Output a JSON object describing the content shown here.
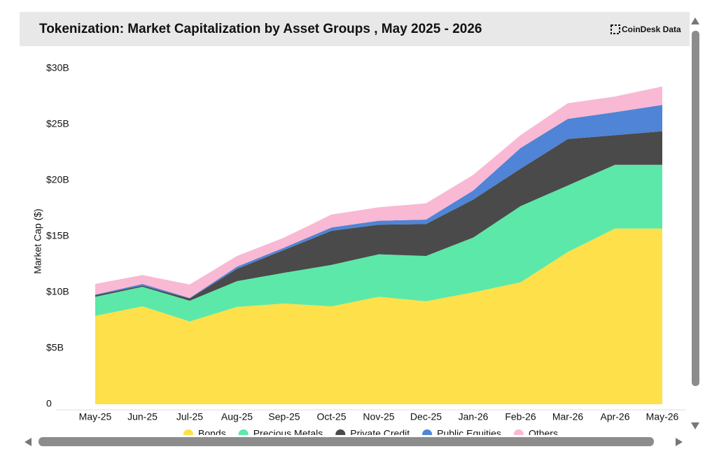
{
  "chart_data": {
    "type": "stacked-area",
    "title": "Tokenization: Market Capitalization by Asset Groups , May 2025 - 2026",
    "source": "CoinDesk Data",
    "y_label": "Market Cap ($)",
    "categories": [
      "May-25",
      "Jun-25",
      "Jul-25",
      "Aug-25",
      "Sep-25",
      "Oct-25",
      "Nov-25",
      "Dec-25",
      "Jan-26",
      "Feb-26",
      "Mar-26",
      "Apr-26",
      "May-26"
    ],
    "ylim": [
      0,
      30
    ],
    "yticks": [
      0,
      {
        "value": 5,
        "label": "$5B"
      },
      {
        "value": 10,
        "label": "$10B"
      },
      {
        "value": 15,
        "label": "$15B"
      },
      {
        "value": 20,
        "label": "$20B"
      },
      {
        "value": 25,
        "label": "$25B"
      },
      {
        "value": 30,
        "label": "$30B"
      }
    ],
    "grid": false,
    "legend": "bottom",
    "series": [
      {
        "name": "Bonds",
        "color": "#fde04a",
        "values": [
          7.9,
          8.75,
          7.4,
          8.7,
          9.0,
          8.75,
          9.6,
          9.2,
          10.0,
          10.9,
          13.6,
          15.7,
          15.7
        ]
      },
      {
        "name": "Precious Metals",
        "color": "#5ce8a8",
        "values": [
          1.7,
          1.75,
          1.85,
          2.3,
          2.75,
          3.7,
          3.8,
          4.05,
          4.9,
          6.8,
          5.95,
          5.7,
          5.7
        ]
      },
      {
        "name": "Private Credit",
        "color": "#4a4a4a",
        "values": [
          0.15,
          0.1,
          0.2,
          1.1,
          2.05,
          3.05,
          2.65,
          2.85,
          3.4,
          3.35,
          4.15,
          2.65,
          3.0
        ]
      },
      {
        "name": "Public Equities",
        "color": "#4f84d6",
        "values": [
          0.05,
          0.15,
          0.05,
          0.2,
          0.2,
          0.3,
          0.35,
          0.4,
          0.8,
          1.85,
          1.8,
          2.05,
          2.35
        ]
      },
      {
        "name": "Others",
        "color": "#f9b8d3",
        "values": [
          0.95,
          0.8,
          1.2,
          0.95,
          0.9,
          1.15,
          1.2,
          1.45,
          1.4,
          1.15,
          1.4,
          1.4,
          1.65
        ]
      }
    ]
  }
}
